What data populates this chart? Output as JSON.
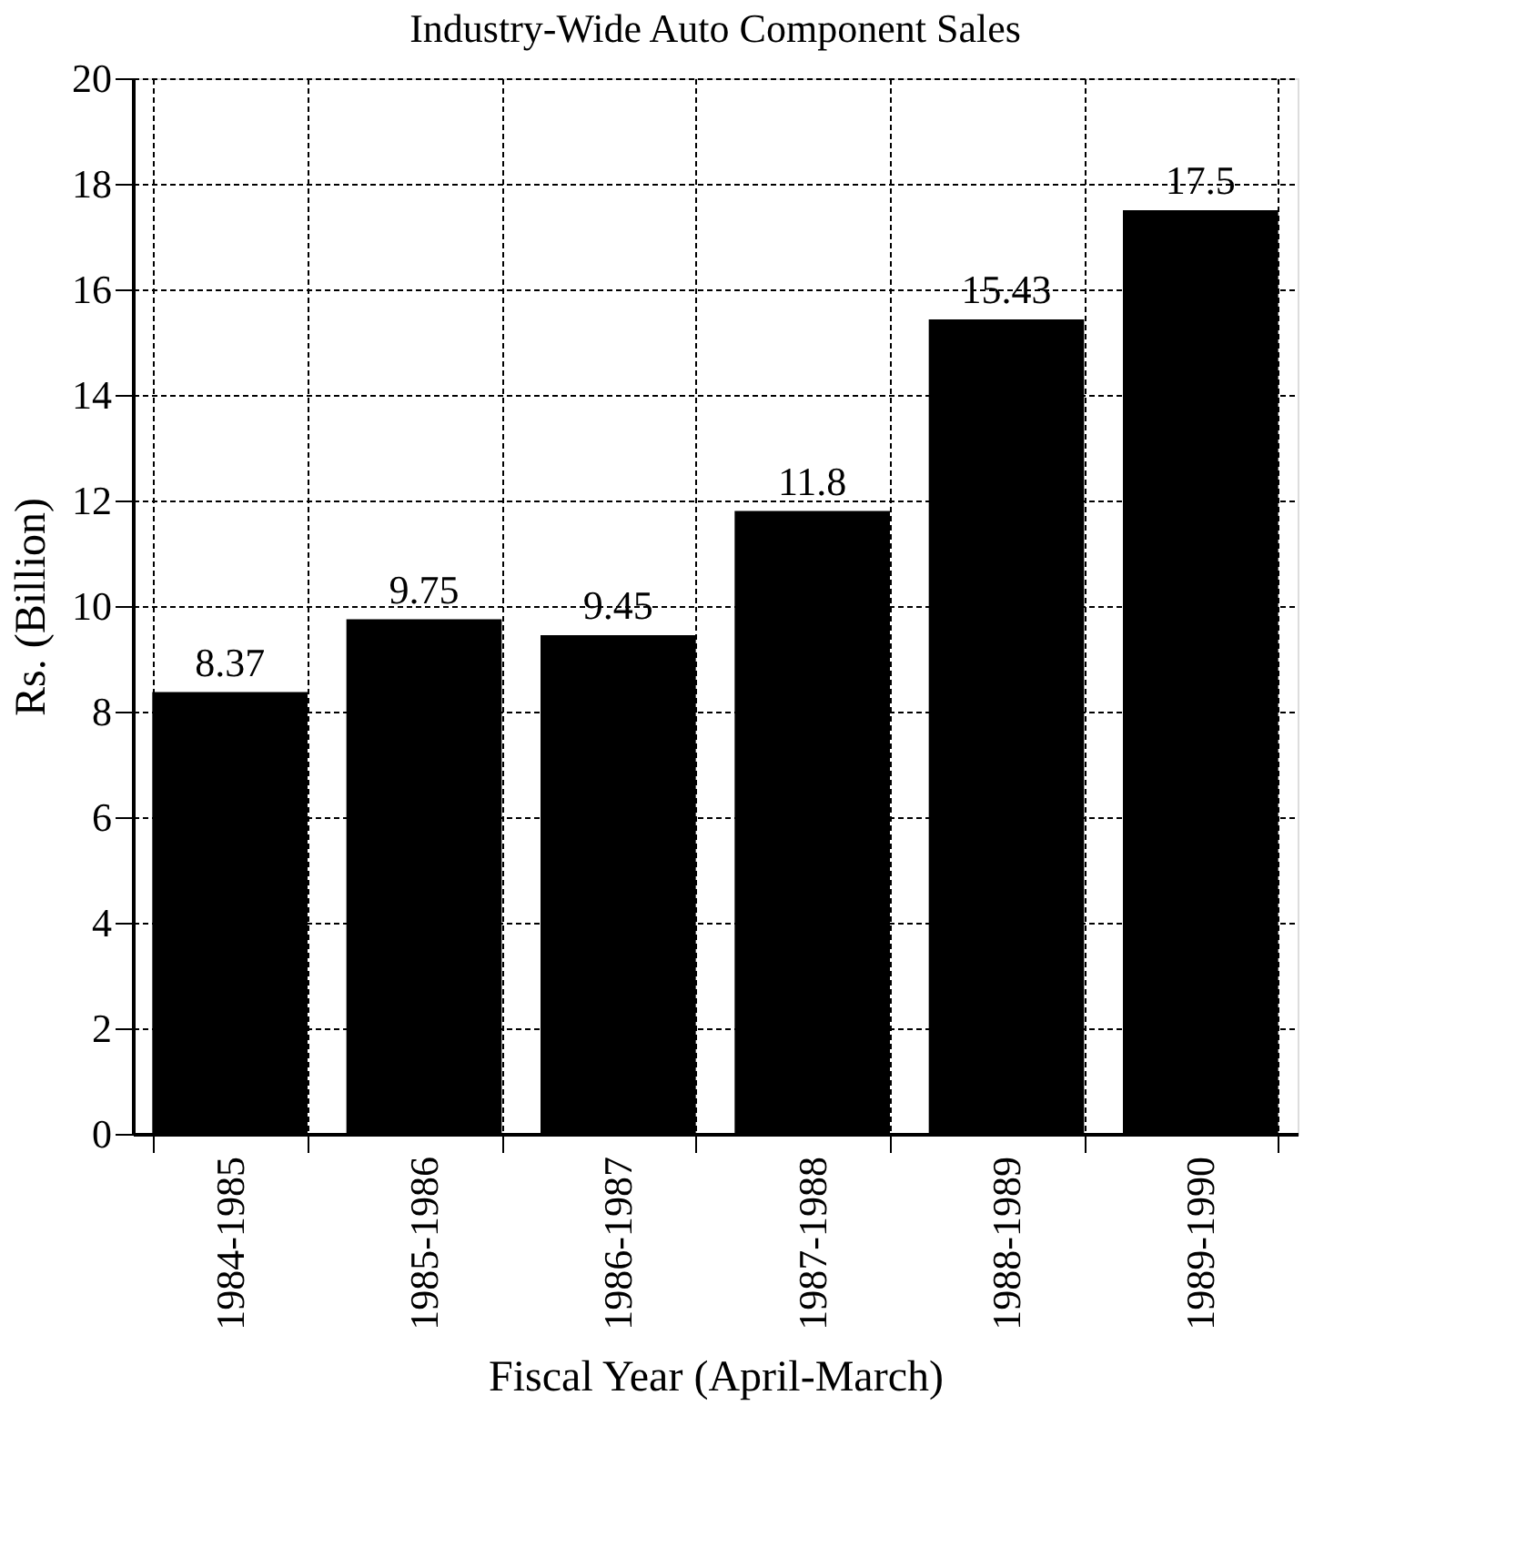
{
  "chart_data": {
    "type": "bar",
    "title": "Industry-Wide Auto Component Sales",
    "xlabel": "Fiscal Year (April-March)",
    "ylabel": "Rs. (Billion)",
    "categories": [
      "1984-1985",
      "1985-1986",
      "1986-1987",
      "1987-1988",
      "1988-1989",
      "1989-1990"
    ],
    "values": [
      8.37,
      9.75,
      9.45,
      11.8,
      15.43,
      17.5
    ],
    "color": "#000000",
    "ylim": [
      0,
      20
    ],
    "yticks": [
      0,
      2,
      4,
      6,
      8,
      10,
      12,
      14,
      16,
      18,
      20
    ],
    "grid": true,
    "data_labels": true
  }
}
